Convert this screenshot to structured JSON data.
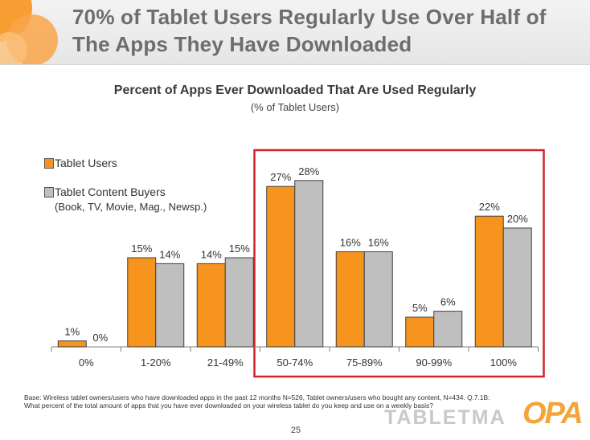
{
  "slide": {
    "title": "70% of Tablet Users Regularly Use Over Half of The Apps They Have Downloaded",
    "page_number": "25",
    "footnote": "Base:  Wireless tablet owners/users who have downloaded apps in the past 12 months N=526, Tablet owners/users who bought any content, N=434.  Q.7.1B: What percent of the total amount of apps that you have ever downloaded on your wireless tablet do you keep and use on a weekly basis?",
    "watermark": "TABLETMA",
    "logo_text": "OPA"
  },
  "colors": {
    "tablet_users": "#f7941d",
    "content_buyers": "#bfbfbf",
    "highlight_box": "#d2232a"
  },
  "chart_data": {
    "type": "bar",
    "title": "Percent of Apps Ever Downloaded That Are Used Regularly",
    "subtitle": "(% of Tablet Users)",
    "categories": [
      "0%",
      "1-20%",
      "21-49%",
      "50-74%",
      "75-89%",
      "90-99%",
      "100%"
    ],
    "series": [
      {
        "name": "Tablet Users",
        "values": [
          1,
          15,
          14,
          27,
          16,
          5,
          22
        ]
      },
      {
        "name": "Tablet Content Buyers",
        "name_line2": "(Book, TV, Movie, Mag., Newsp.)",
        "values": [
          0,
          14,
          15,
          28,
          16,
          6,
          20
        ]
      }
    ],
    "value_suffix": "%",
    "ylim": [
      0,
      28
    ],
    "grid": false,
    "legend": "top-left",
    "highlighted_categories": [
      "50-74%",
      "75-89%",
      "90-99%",
      "100%"
    ]
  }
}
